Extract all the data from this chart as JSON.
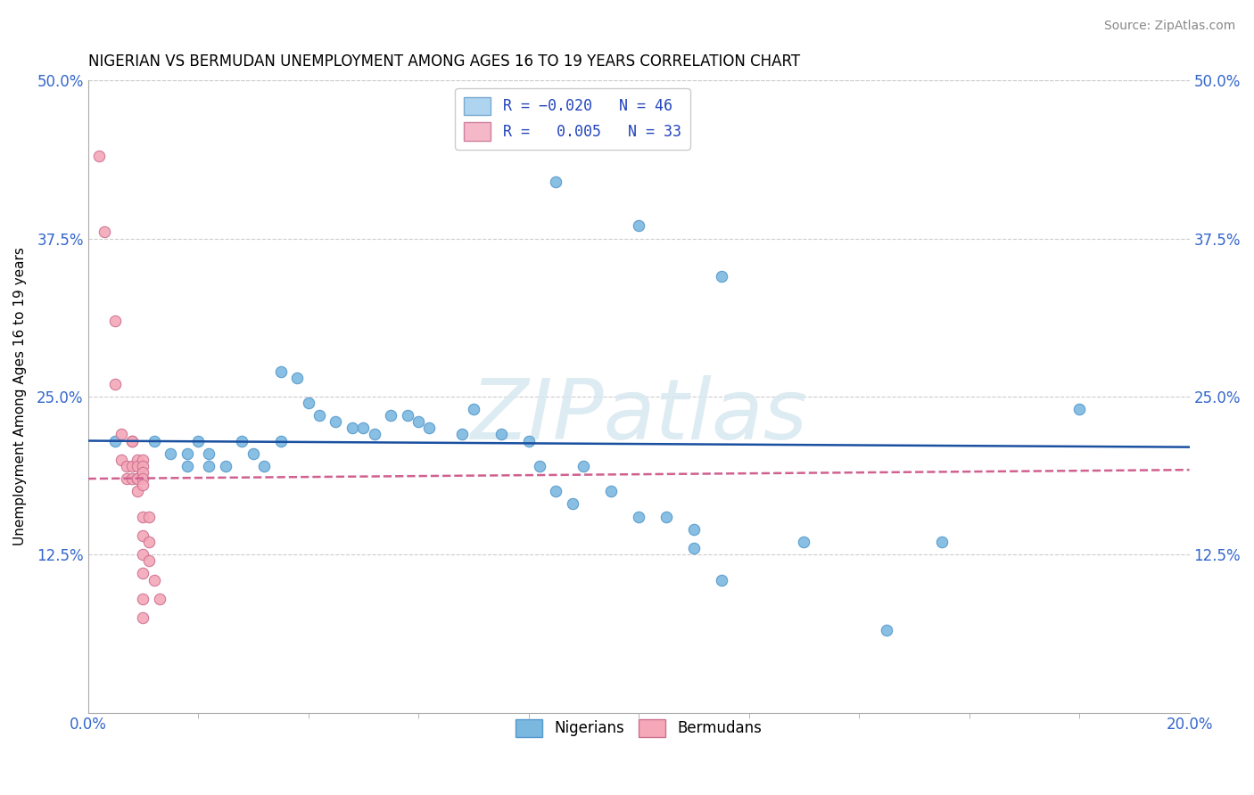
{
  "title": "NIGERIAN VS BERMUDAN UNEMPLOYMENT AMONG AGES 16 TO 19 YEARS CORRELATION CHART",
  "source": "Source: ZipAtlas.com",
  "ylabel": "Unemployment Among Ages 16 to 19 years",
  "xlim": [
    0.0,
    0.2
  ],
  "ylim": [
    0.0,
    0.5
  ],
  "xticks": [
    0.0,
    0.2
  ],
  "xtick_labels": [
    "0.0%",
    "20.0%"
  ],
  "yticks": [
    0.0,
    0.125,
    0.25,
    0.375,
    0.5
  ],
  "ytick_labels": [
    "",
    "12.5%",
    "25.0%",
    "37.5%",
    "50.0%"
  ],
  "watermark": "ZIPatlas",
  "nigerian_color": "#7bb8e0",
  "nigerian_edge": "#5599cc",
  "bermudan_color": "#f4a8b8",
  "bermudan_edge": "#cc7090",
  "nigerian_line_color": "#1a50a0",
  "bermudan_line_color": "#d06090",
  "nigerian_dots": [
    [
      0.005,
      0.215
    ],
    [
      0.012,
      0.215
    ],
    [
      0.015,
      0.205
    ],
    [
      0.018,
      0.205
    ],
    [
      0.018,
      0.195
    ],
    [
      0.02,
      0.215
    ],
    [
      0.022,
      0.205
    ],
    [
      0.022,
      0.195
    ],
    [
      0.025,
      0.195
    ],
    [
      0.028,
      0.215
    ],
    [
      0.03,
      0.205
    ],
    [
      0.032,
      0.195
    ],
    [
      0.035,
      0.215
    ],
    [
      0.035,
      0.27
    ],
    [
      0.038,
      0.265
    ],
    [
      0.04,
      0.245
    ],
    [
      0.042,
      0.235
    ],
    [
      0.045,
      0.23
    ],
    [
      0.048,
      0.225
    ],
    [
      0.05,
      0.225
    ],
    [
      0.052,
      0.22
    ],
    [
      0.055,
      0.235
    ],
    [
      0.058,
      0.235
    ],
    [
      0.06,
      0.23
    ],
    [
      0.062,
      0.225
    ],
    [
      0.068,
      0.22
    ],
    [
      0.07,
      0.24
    ],
    [
      0.075,
      0.22
    ],
    [
      0.08,
      0.215
    ],
    [
      0.082,
      0.195
    ],
    [
      0.085,
      0.175
    ],
    [
      0.088,
      0.165
    ],
    [
      0.09,
      0.195
    ],
    [
      0.095,
      0.175
    ],
    [
      0.1,
      0.155
    ],
    [
      0.105,
      0.155
    ],
    [
      0.11,
      0.145
    ],
    [
      0.085,
      0.42
    ],
    [
      0.1,
      0.385
    ],
    [
      0.115,
      0.345
    ],
    [
      0.11,
      0.13
    ],
    [
      0.13,
      0.135
    ],
    [
      0.145,
      0.065
    ],
    [
      0.155,
      0.135
    ],
    [
      0.18,
      0.24
    ],
    [
      0.115,
      0.105
    ]
  ],
  "bermudan_dots": [
    [
      0.002,
      0.44
    ],
    [
      0.003,
      0.38
    ],
    [
      0.005,
      0.31
    ],
    [
      0.005,
      0.26
    ],
    [
      0.006,
      0.22
    ],
    [
      0.006,
      0.2
    ],
    [
      0.007,
      0.195
    ],
    [
      0.007,
      0.185
    ],
    [
      0.008,
      0.215
    ],
    [
      0.008,
      0.195
    ],
    [
      0.008,
      0.185
    ],
    [
      0.008,
      0.215
    ],
    [
      0.009,
      0.2
    ],
    [
      0.009,
      0.195
    ],
    [
      0.009,
      0.185
    ],
    [
      0.009,
      0.175
    ],
    [
      0.009,
      0.185
    ],
    [
      0.01,
      0.2
    ],
    [
      0.01,
      0.195
    ],
    [
      0.01,
      0.19
    ],
    [
      0.01,
      0.185
    ],
    [
      0.01,
      0.18
    ],
    [
      0.01,
      0.155
    ],
    [
      0.01,
      0.14
    ],
    [
      0.01,
      0.125
    ],
    [
      0.01,
      0.11
    ],
    [
      0.01,
      0.09
    ],
    [
      0.01,
      0.075
    ],
    [
      0.011,
      0.155
    ],
    [
      0.011,
      0.135
    ],
    [
      0.011,
      0.12
    ],
    [
      0.012,
      0.105
    ],
    [
      0.013,
      0.09
    ]
  ],
  "nigerian_trend": [
    -0.02,
    0.2
  ],
  "bermudan_trend": [
    0.005,
    0.19
  ]
}
